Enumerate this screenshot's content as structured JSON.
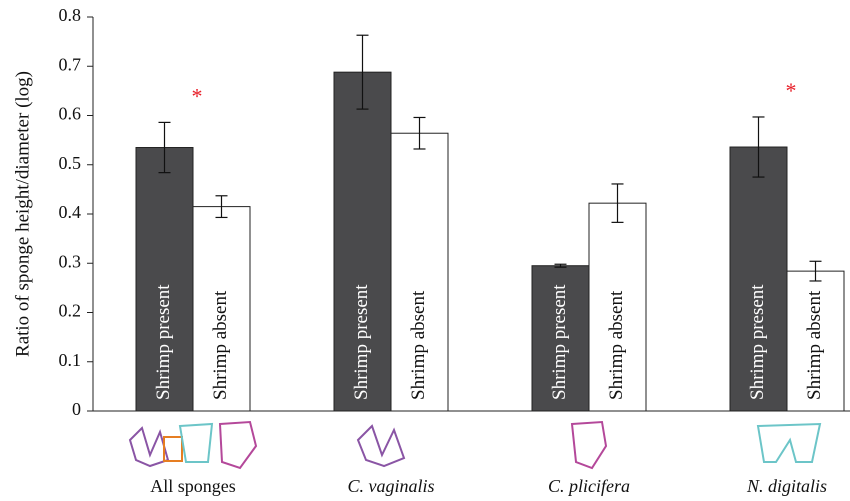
{
  "chart_data": {
    "type": "bar",
    "y_label": "Ratio of sponge height/diameter (log)",
    "categories": [
      "All sponges",
      "C. vaginalis",
      "C. plicifera",
      "N. digitalis"
    ],
    "category_italic": [
      false,
      true,
      true,
      true
    ],
    "series": [
      {
        "name": "Shrimp present",
        "color": "#4a4a4c",
        "label_color": "#ffffff",
        "values": [
          0.535,
          0.688,
          0.295,
          0.536
        ],
        "errors": [
          0.051,
          0.075,
          0.003,
          0.061
        ]
      },
      {
        "name": "Shrimp absent",
        "color": "#ffffff",
        "label_color": "#111111",
        "values": [
          0.415,
          0.564,
          0.422,
          0.284
        ],
        "errors": [
          0.022,
          0.032,
          0.039,
          0.02
        ]
      }
    ],
    "significance": [
      "*",
      null,
      null,
      "*"
    ],
    "ylim": [
      0,
      0.8
    ],
    "yticks": [
      0,
      0.1,
      0.2,
      0.3,
      0.4,
      0.5,
      0.6,
      0.7,
      0.8
    ]
  }
}
